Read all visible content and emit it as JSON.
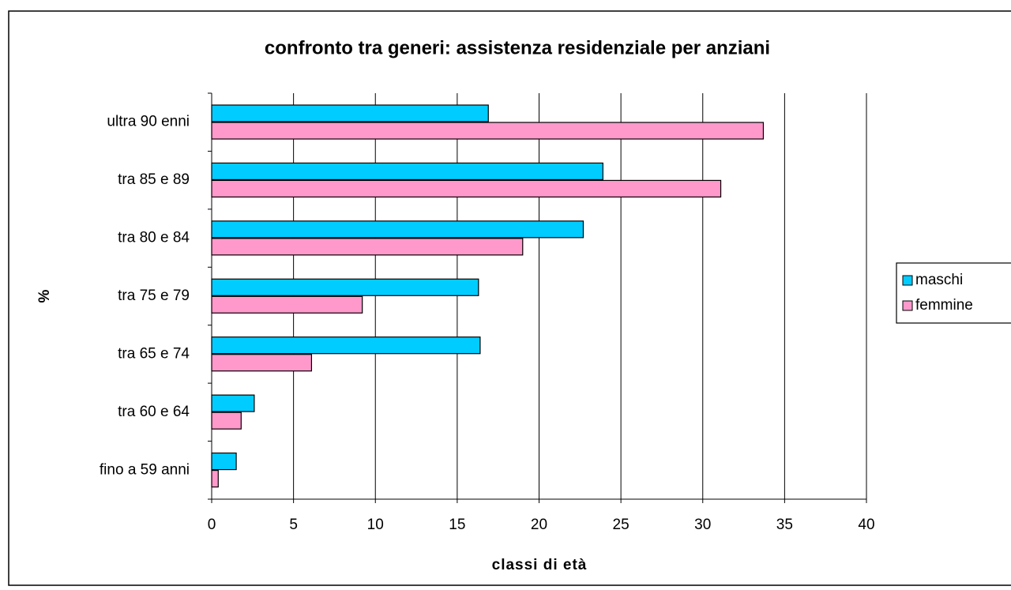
{
  "chart_data": {
    "type": "hbar",
    "title": "confronto tra generi: assistenza residenziale per anziani",
    "x_label": "classi di età",
    "y_label": "%",
    "categories": [
      "ultra 90 enni",
      "tra 85 e 89",
      "tra 80 e 84",
      "tra 75 e 79",
      "tra 65 e 74",
      "tra 60 e 64",
      "fino a 59 anni"
    ],
    "series": [
      {
        "name": "maschi",
        "color": "#00ccff",
        "values": [
          16.9,
          23.9,
          22.7,
          16.3,
          16.4,
          2.6,
          1.5
        ]
      },
      {
        "name": "femmine",
        "color": "#ff99cc",
        "values": [
          33.7,
          31.1,
          19.0,
          9.2,
          6.1,
          1.8,
          0.4
        ]
      }
    ],
    "xlim": [
      0,
      40
    ],
    "xticks": [
      0,
      5,
      10,
      15,
      20,
      25,
      30,
      35,
      40
    ],
    "grid": true,
    "legend": "right"
  }
}
